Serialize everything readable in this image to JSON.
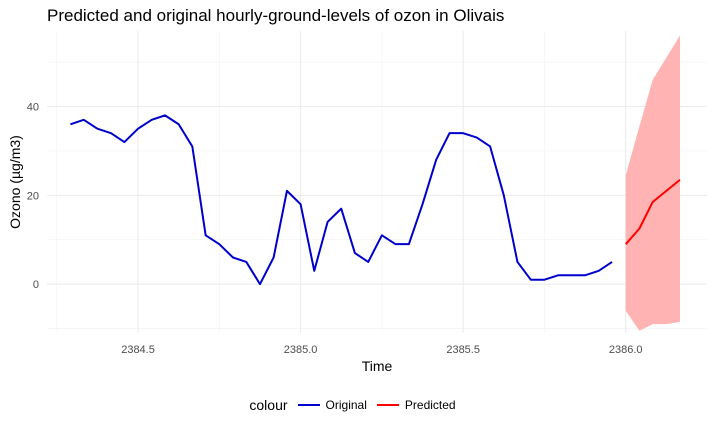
{
  "chart_data": {
    "type": "line",
    "title": "Predicted and original hourly-ground-levels of ozon in Olivais",
    "xlabel": "Time",
    "ylabel": "Ozono (µg/m3)",
    "xlim": [
      2384.22,
      2386.25
    ],
    "ylim": [
      -11,
      57
    ],
    "x_ticks": [
      2384.5,
      2385.0,
      2385.5,
      2386.0
    ],
    "x_tick_labels": [
      "2384.5",
      "2385.0",
      "2385.5",
      "2386.0"
    ],
    "y_ticks": [
      0,
      20,
      40
    ],
    "y_tick_labels": [
      "0",
      "20",
      "40"
    ],
    "grid": true,
    "legend_title": "colour",
    "legend_position": "bottom",
    "series": [
      {
        "name": "Original",
        "color": "#0000CD",
        "x": [
          2384.292,
          2384.333,
          2384.375,
          2384.417,
          2384.458,
          2384.5,
          2384.542,
          2384.583,
          2384.625,
          2384.667,
          2384.708,
          2384.75,
          2384.792,
          2384.833,
          2384.875,
          2384.917,
          2384.958,
          2385.0,
          2385.042,
          2385.083,
          2385.125,
          2385.167,
          2385.208,
          2385.25,
          2385.292,
          2385.333,
          2385.375,
          2385.417,
          2385.458,
          2385.5,
          2385.542,
          2385.583,
          2385.625,
          2385.667,
          2385.708,
          2385.75,
          2385.792,
          2385.833,
          2385.875,
          2385.917,
          2385.958
        ],
        "y": [
          36,
          37,
          35,
          34,
          32,
          35,
          37,
          38,
          36,
          31,
          11,
          9,
          6,
          5,
          0,
          6,
          21,
          18,
          3,
          14,
          17,
          7,
          5,
          11,
          9,
          9,
          18,
          28,
          34,
          34,
          33,
          31,
          20,
          5,
          1,
          1,
          2,
          2,
          2,
          3,
          5
        ]
      },
      {
        "name": "Predicted",
        "color": "#FF0000",
        "x": [
          2386.0,
          2386.042,
          2386.083,
          2386.125,
          2386.167
        ],
        "y": [
          9,
          12.5,
          18.5,
          21,
          23.5
        ],
        "lower": [
          -6,
          -10.5,
          -9,
          -9,
          -8.5
        ],
        "upper": [
          24.5,
          35.5,
          46,
          51,
          56
        ]
      }
    ],
    "band_color": "#FFB3B3"
  }
}
